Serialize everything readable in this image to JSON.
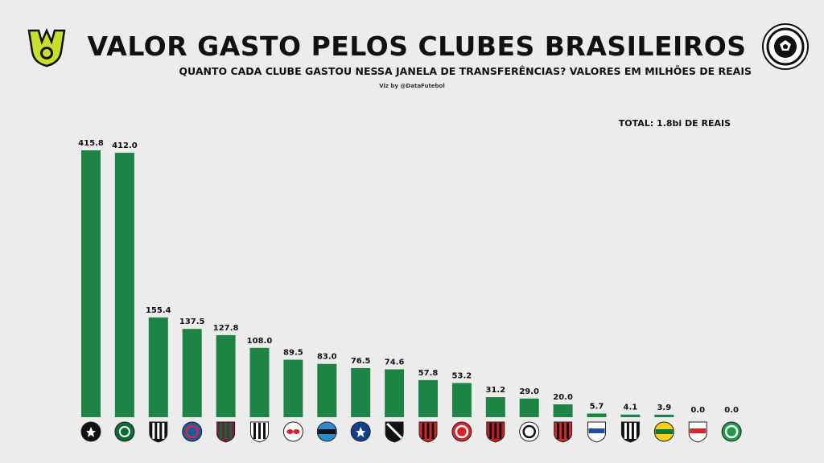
{
  "header": {
    "title": "VALOR GASTO PELOS CLUBES BRASILEIROS",
    "subtitle": "QUANTO CADA CLUBE GASTOU NESSA JANELA DE TRANSFERÊNCIAS? VALORES EM MILHÕES DE REAIS",
    "credit": "Viz by @DataFutebol",
    "total": "TOTAL: 1.8bi DE REAIS"
  },
  "logos": {
    "league": "brasileirao-trophy-icon",
    "brand": "soccer-ball-icon"
  },
  "colors": {
    "bar": "#1e8446",
    "background": "#ececec",
    "league_logo": "#c8e02a"
  },
  "chart_data": {
    "type": "bar",
    "categories": [
      "Botafogo",
      "Palmeiras",
      "Atlético-MG",
      "Bahia",
      "Fluminense",
      "Santos",
      "RB Bragantino",
      "Grêmio",
      "Cruzeiro",
      "Vasco",
      "Sport",
      "Internacional",
      "Flamengo",
      "Corinthians",
      "Vitória",
      "Fortaleza",
      "Ceará",
      "Mirassol",
      "São Paulo",
      "Juventude"
    ],
    "values": [
      415.8,
      412.0,
      155.4,
      137.5,
      127.8,
      108.0,
      89.5,
      83.0,
      76.5,
      74.6,
      57.8,
      53.2,
      31.2,
      29.0,
      20.0,
      5.7,
      4.1,
      3.9,
      0.0,
      0.0
    ],
    "value_labels": [
      "415.8",
      "412.0",
      "155.4",
      "137.5",
      "127.8",
      "108.0",
      "89.5",
      "83.0",
      "76.5",
      "74.6",
      "57.8",
      "53.2",
      "31.2",
      "29.0",
      "20.0",
      "5.7",
      "4.1",
      "3.9",
      "0.0",
      "0.0"
    ],
    "crests": [
      {
        "bg": "#111111",
        "fg": "#ffffff",
        "shape": "circle",
        "style": "star"
      },
      {
        "bg": "#0b6b35",
        "fg": "#ffffff",
        "shape": "circle",
        "style": "p"
      },
      {
        "bg": "#111111",
        "fg": "#ffffff",
        "shape": "shield",
        "style": "stripes"
      },
      {
        "bg": "#1a5aa8",
        "fg": "#e0242e",
        "shape": "circle",
        "style": "ring"
      },
      {
        "bg": "#7a1e3a",
        "fg": "#0a6b3a",
        "shape": "shield",
        "style": "stripes"
      },
      {
        "bg": "#ffffff",
        "fg": "#111111",
        "shape": "shield",
        "style": "stripes"
      },
      {
        "bg": "#ffffff",
        "fg": "#d2202f",
        "shape": "circle",
        "style": "bull"
      },
      {
        "bg": "#2a8bd0",
        "fg": "#111111",
        "shape": "circle",
        "style": "band"
      },
      {
        "bg": "#123f8c",
        "fg": "#ffffff",
        "shape": "circle",
        "style": "stars"
      },
      {
        "bg": "#111111",
        "fg": "#ffffff",
        "shape": "shield",
        "style": "diag"
      },
      {
        "bg": "#d6262a",
        "fg": "#111111",
        "shape": "shield",
        "style": "stripes"
      },
      {
        "bg": "#d6262a",
        "fg": "#ffffff",
        "shape": "circle",
        "style": "ring"
      },
      {
        "bg": "#c81b25",
        "fg": "#111111",
        "shape": "shield",
        "style": "stripes"
      },
      {
        "bg": "#ffffff",
        "fg": "#111111",
        "shape": "circle",
        "style": "ring"
      },
      {
        "bg": "#d6262a",
        "fg": "#111111",
        "shape": "shield",
        "style": "stripes"
      },
      {
        "bg": "#ffffff",
        "fg": "#1f4ea0",
        "shape": "shield",
        "style": "band"
      },
      {
        "bg": "#111111",
        "fg": "#ffffff",
        "shape": "shield",
        "style": "stripes"
      },
      {
        "bg": "#f2d21f",
        "fg": "#0a7a3a",
        "shape": "circle",
        "style": "band"
      },
      {
        "bg": "#ffffff",
        "fg": "#d6262a",
        "shape": "shield",
        "style": "band"
      },
      {
        "bg": "#1f9a4a",
        "fg": "#ffffff",
        "shape": "circle",
        "style": "ring"
      }
    ]
  }
}
